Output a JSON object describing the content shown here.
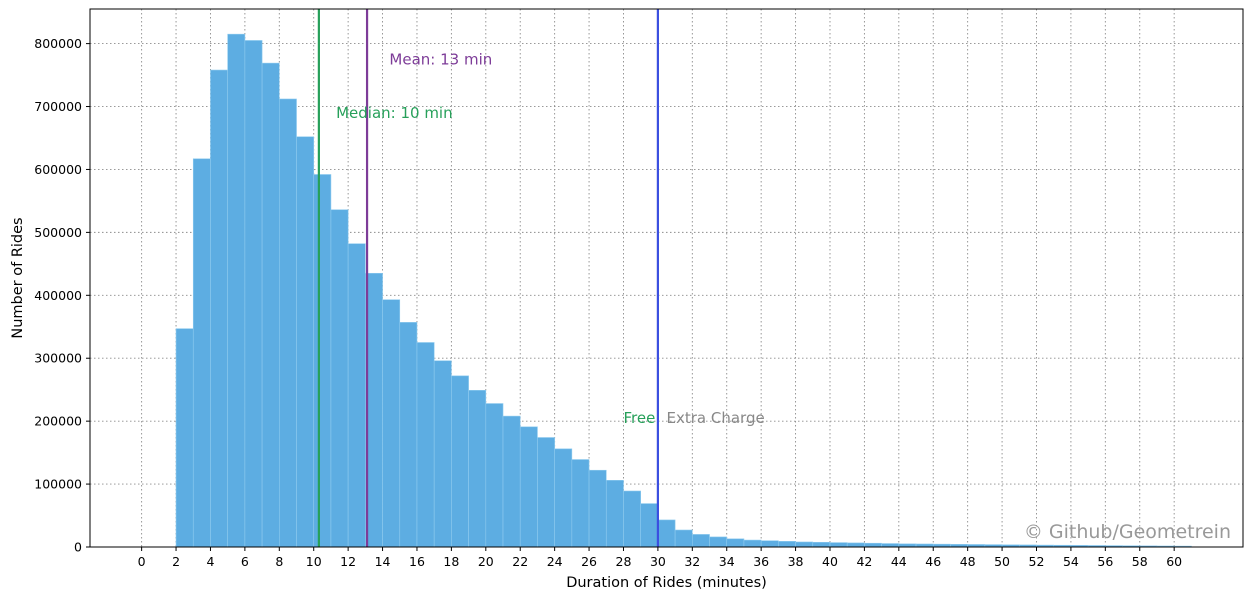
{
  "chart_data": {
    "type": "bar",
    "xlabel": "Duration of Rides (minutes)",
    "ylabel": "Number of Rides",
    "x_range": [
      -3,
      64
    ],
    "ylim": [
      0,
      855000
    ],
    "grid": true,
    "bin_width": 1,
    "x_ticks": [
      0,
      2,
      4,
      6,
      8,
      10,
      12,
      14,
      16,
      18,
      20,
      22,
      24,
      26,
      28,
      30,
      32,
      34,
      36,
      38,
      40,
      42,
      44,
      46,
      48,
      50,
      52,
      54,
      56,
      58,
      60
    ],
    "y_ticks": [
      0,
      100000,
      200000,
      300000,
      400000,
      500000,
      600000,
      700000,
      800000
    ],
    "bins_start": [
      2,
      3,
      4,
      5,
      6,
      7,
      8,
      9,
      10,
      11,
      12,
      13,
      14,
      15,
      16,
      17,
      18,
      19,
      20,
      21,
      22,
      23,
      24,
      25,
      26,
      27,
      28,
      29,
      30,
      31,
      32,
      33,
      34,
      35,
      36,
      37,
      38,
      39,
      40,
      41,
      42,
      43,
      44,
      45,
      46,
      47,
      48,
      49,
      50,
      51,
      52,
      53,
      54,
      55,
      56,
      57,
      58,
      59,
      60
    ],
    "values": [
      347000,
      617000,
      758000,
      815000,
      805000,
      769000,
      712000,
      652000,
      592000,
      536000,
      482000,
      435000,
      393000,
      357000,
      325000,
      296000,
      272000,
      249000,
      228000,
      208000,
      191000,
      174000,
      156000,
      139000,
      122000,
      106000,
      89000,
      69000,
      43000,
      27000,
      20000,
      16000,
      13000,
      11000,
      10000,
      9000,
      8000,
      7500,
      7000,
      6500,
      6000,
      5500,
      5000,
      4800,
      4500,
      4200,
      4000,
      3800,
      3500,
      3300,
      3000,
      2800,
      2600,
      2400,
      2200,
      2000,
      1800,
      1600,
      1400
    ],
    "bar_color": "#5DADE2",
    "vlines": [
      {
        "x": 10.3,
        "color": "#27A05A"
      },
      {
        "x": 13.1,
        "color": "#7D3C98"
      },
      {
        "x": 30,
        "color": "#3B4FE0"
      }
    ],
    "annotations": [
      {
        "text": "Median: 10 min",
        "x": 11.3,
        "y": 690000,
        "color": "#27A05A"
      },
      {
        "text": "Mean: 13 min",
        "x": 14.4,
        "y": 775000,
        "color": "#7D3C98"
      },
      {
        "text": "Free",
        "x": 28.0,
        "y": 205000,
        "color": "#27A05A"
      },
      {
        "text": "Extra Charge",
        "x": 30.5,
        "y": 205000,
        "color": "#888888"
      }
    ],
    "watermark": "© Github/Geometrein"
  }
}
